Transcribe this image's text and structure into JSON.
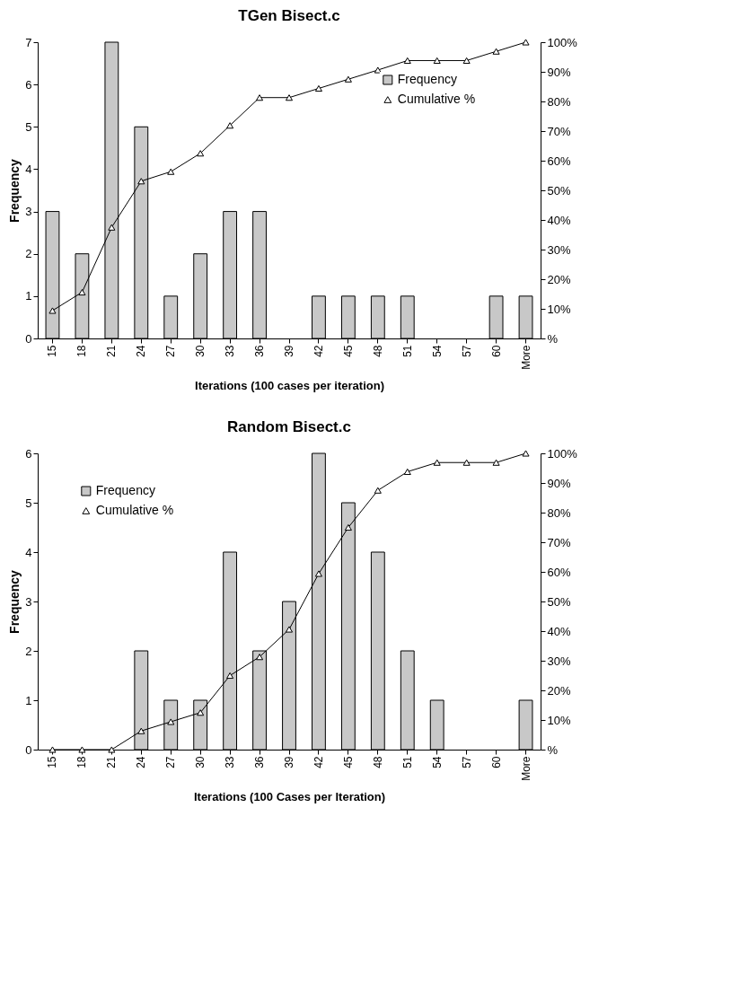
{
  "chart_data": [
    {
      "type": "bar",
      "title": "TGen  Bisect.c",
      "xlabel": "Iterations (100 cases per iteration)",
      "ylabel": "Frequency",
      "categories": [
        "15",
        "18",
        "21",
        "24",
        "27",
        "30",
        "33",
        "36",
        "39",
        "42",
        "45",
        "48",
        "51",
        "54",
        "57",
        "60",
        "More"
      ],
      "series": [
        {
          "name": "Frequency",
          "type": "bar",
          "color": "#c8c8c8",
          "values": [
            3,
            2,
            7,
            5,
            1,
            2,
            3,
            3,
            0,
            1,
            1,
            1,
            1,
            0,
            0,
            1,
            1
          ]
        },
        {
          "name": "Cumulative %",
          "type": "line",
          "axis": "y2",
          "color": "#000000",
          "values": [
            9.4,
            15.6,
            37.5,
            53.1,
            56.3,
            62.5,
            71.9,
            81.3,
            81.3,
            84.4,
            87.5,
            90.6,
            93.8,
            93.8,
            93.8,
            96.9,
            100
          ]
        }
      ],
      "ylim": [
        0,
        7
      ],
      "yticks": [
        0,
        1,
        2,
        3,
        4,
        5,
        6,
        7
      ],
      "y2lim": [
        0,
        100
      ],
      "y2ticks": [
        {
          "value": 0,
          "label": "%"
        },
        {
          "value": 10,
          "label": "10%"
        },
        {
          "value": 20,
          "label": "20%"
        },
        {
          "value": 30,
          "label": "30%"
        },
        {
          "value": 40,
          "label": "40%"
        },
        {
          "value": 50,
          "label": "50%"
        },
        {
          "value": 60,
          "label": "60%"
        },
        {
          "value": 70,
          "label": "70%"
        },
        {
          "value": 80,
          "label": "80%"
        },
        {
          "value": 90,
          "label": "90%"
        },
        {
          "value": 100,
          "label": "100%"
        }
      ],
      "marker": "triangle",
      "legend": "top right"
    },
    {
      "type": "bar",
      "title": "Random  Bisect.c",
      "xlabel": "Iterations (100 Cases per Iteration)",
      "ylabel": "Frequency",
      "categories": [
        "15",
        "18",
        "21",
        "24",
        "27",
        "30",
        "33",
        "36",
        "39",
        "42",
        "45",
        "48",
        "51",
        "54",
        "57",
        "60",
        "More"
      ],
      "series": [
        {
          "name": "Frequency",
          "type": "bar",
          "color": "#c8c8c8",
          "values": [
            0,
            0,
            0,
            2,
            1,
            1,
            4,
            2,
            3,
            6,
            5,
            4,
            2,
            1,
            0,
            0,
            1
          ]
        },
        {
          "name": "Cumulative %",
          "type": "line",
          "axis": "y2",
          "color": "#000000",
          "values": [
            0,
            0,
            0,
            6.3,
            9.4,
            12.5,
            25,
            31.3,
            40.6,
            59.4,
            75,
            87.5,
            93.8,
            96.9,
            96.9,
            96.9,
            100
          ]
        }
      ],
      "ylim": [
        0,
        6
      ],
      "yticks": [
        0,
        1,
        2,
        3,
        4,
        5,
        6
      ],
      "y2lim": [
        0,
        100
      ],
      "y2ticks": [
        {
          "value": 0,
          "label": "%"
        },
        {
          "value": 10,
          "label": "10%"
        },
        {
          "value": 20,
          "label": "20%"
        },
        {
          "value": 30,
          "label": "30%"
        },
        {
          "value": 40,
          "label": "40%"
        },
        {
          "value": 50,
          "label": "50%"
        },
        {
          "value": 60,
          "label": "60%"
        },
        {
          "value": 70,
          "label": "70%"
        },
        {
          "value": 80,
          "label": "80%"
        },
        {
          "value": 90,
          "label": "90%"
        },
        {
          "value": 100,
          "label": "100%"
        }
      ],
      "marker": "triangle",
      "legend": "top left"
    }
  ]
}
